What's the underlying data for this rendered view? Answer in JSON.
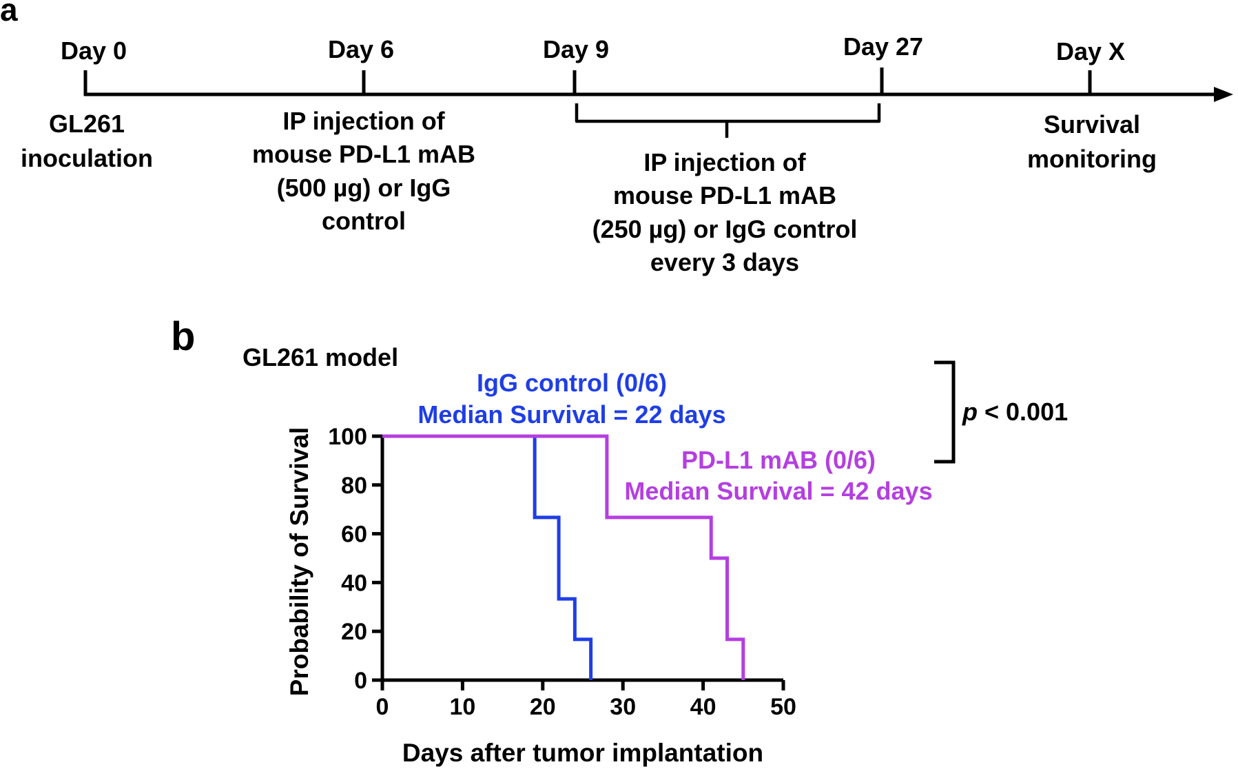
{
  "panel_a": {
    "letter": "a",
    "timeline": [
      {
        "day": "Day 0",
        "lines": [
          "GL261",
          "inoculation"
        ]
      },
      {
        "day": "Day 6",
        "lines": [
          "IP injection of",
          "mouse PD-L1 mAB",
          "(500 µg) or IgG",
          "control"
        ]
      },
      {
        "day": "Day 9",
        "lines": []
      },
      {
        "day": "Day 27",
        "lines": []
      },
      {
        "day": "Day X",
        "lines": [
          "Survival",
          "monitoring"
        ]
      }
    ],
    "bracket_lines": [
      "IP injection of",
      "mouse PD-L1 mAB",
      "(250 µg) or IgG control",
      "every 3 days"
    ]
  },
  "panel_b": {
    "letter": "b",
    "model_label": "GL261 model",
    "series_labels": [
      {
        "name": "IgG control (0/6)",
        "median": "Median Survival = 22 days"
      },
      {
        "name": "PD-L1 mAB (0/6)",
        "median": "Median Survival = 42 days"
      }
    ],
    "p_value": {
      "p": "p",
      "rest": " < 0.001"
    }
  },
  "chart_data": {
    "type": "line",
    "title": "GL261 model",
    "xlabel": "Days after tumor implantation",
    "ylabel": "Probability of Survival",
    "xlim": [
      0,
      50
    ],
    "ylim": [
      0,
      100
    ],
    "xticks": [
      0,
      10,
      20,
      30,
      40,
      50
    ],
    "yticks": [
      0,
      20,
      40,
      60,
      80,
      100
    ],
    "grid": false,
    "series": [
      {
        "name": "IgG control (0/6)",
        "color": "#1f3ee6",
        "step": true,
        "x": [
          0,
          19,
          22,
          24,
          26
        ],
        "y": [
          100,
          66.7,
          33.3,
          16.7,
          0
        ]
      },
      {
        "name": "PD-L1 mAB (0/6)",
        "color": "#b43fe0",
        "step": true,
        "x": [
          0,
          28,
          41,
          43,
          45
        ],
        "y": [
          100,
          66.7,
          50,
          16.7,
          0
        ]
      }
    ]
  }
}
